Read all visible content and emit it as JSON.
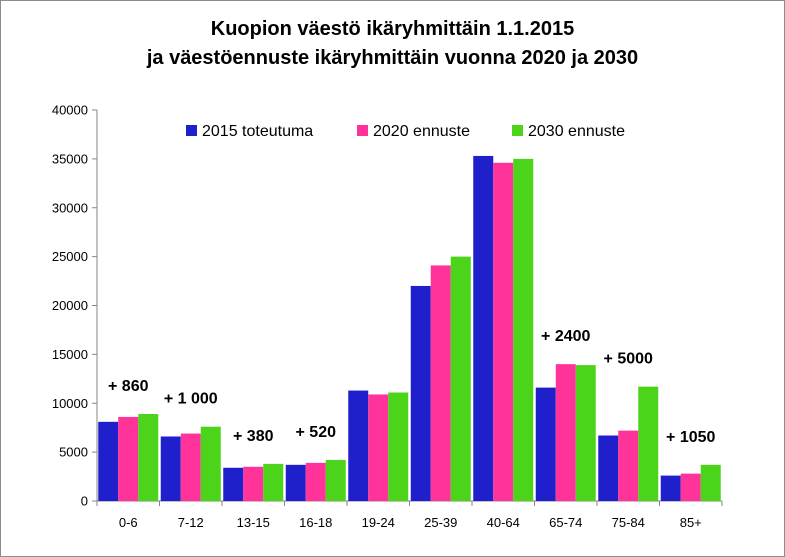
{
  "chart_data": {
    "type": "bar",
    "title": "Kuopion väestö ikäryhmittäin 1.1.2015",
    "subtitle": "ja väestöennuste ikäryhmittäin vuonna 2020 ja 2030",
    "categories": [
      "0-6",
      "7-12",
      "13-15",
      "16-18",
      "19-24",
      "25-39",
      "40-64",
      "65-74",
      "75-84",
      "85+"
    ],
    "series": [
      {
        "name": "2015 toteutuma",
        "color": "#1f1fcc",
        "values": [
          8100,
          6600,
          3400,
          3700,
          11300,
          22000,
          35300,
          11600,
          6700,
          2600
        ]
      },
      {
        "name": "2020 ennuste",
        "color": "#ff3399",
        "values": [
          8600,
          6900,
          3500,
          3900,
          10900,
          24100,
          34600,
          14000,
          7200,
          2800
        ]
      },
      {
        "name": "2030 ennuste",
        "color": "#4cd41a",
        "values": [
          8900,
          7600,
          3800,
          4200,
          11100,
          25000,
          35000,
          13900,
          11700,
          3700
        ]
      }
    ],
    "ylim": [
      0,
      40000
    ],
    "yticks": [
      "0",
      "5000",
      "10000",
      "15000",
      "20000",
      "25000",
      "30000",
      "35000",
      "40000"
    ],
    "xlabel": "",
    "ylabel": "",
    "grid": false,
    "legend_position": "top",
    "annotations": [
      {
        "category": "0-6",
        "text": "+ 860"
      },
      {
        "category": "7-12",
        "text": "+ 1 000"
      },
      {
        "category": "13-15",
        "text": "+ 380"
      },
      {
        "category": "16-18",
        "text": "+ 520"
      },
      {
        "category": "65-74",
        "text": "+ 2400"
      },
      {
        "category": "75-84",
        "text": "+ 5000"
      },
      {
        "category": "85+",
        "text": "+ 1050"
      }
    ]
  }
}
